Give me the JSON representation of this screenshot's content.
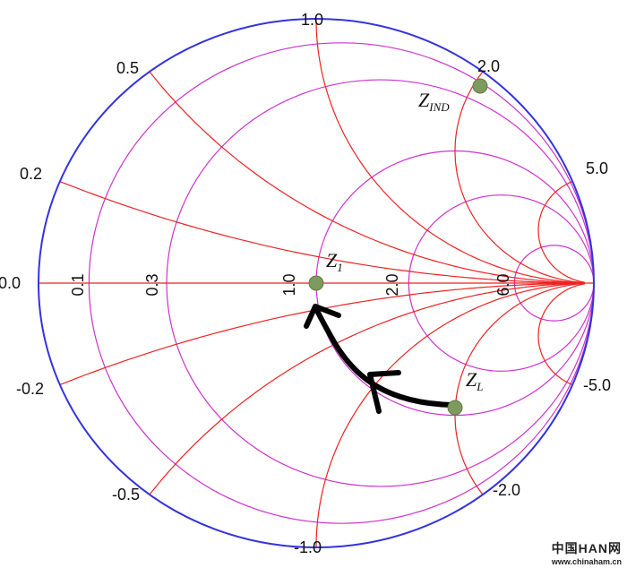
{
  "diagram": {
    "colors": {
      "outer_circle": "#3333dd",
      "resistance_circles": "#cc33cc",
      "reactance_arcs": "#ee2222",
      "points": "#7f9a5f",
      "arrow": "#000000"
    },
    "resistance_labels": [
      "0.0",
      "0.1",
      "0.3",
      "1.0",
      "2.0",
      "6.0"
    ],
    "reactance_labels": {
      "pos": [
        "0.2",
        "0.5",
        "1.0",
        "2.0",
        "5.0"
      ],
      "neg": [
        "-0.2",
        "-0.5",
        "-1.0",
        "-2.0",
        "-5.0"
      ]
    },
    "points": [
      {
        "id": "z_ind",
        "main": "Z",
        "sub": "IND"
      },
      {
        "id": "z_1",
        "main": "Z",
        "sub": "1"
      },
      {
        "id": "z_l",
        "main": "Z",
        "sub": "L"
      }
    ]
  },
  "watermark": {
    "title": "中国HAN网",
    "url": "www.chinaham.cn"
  }
}
